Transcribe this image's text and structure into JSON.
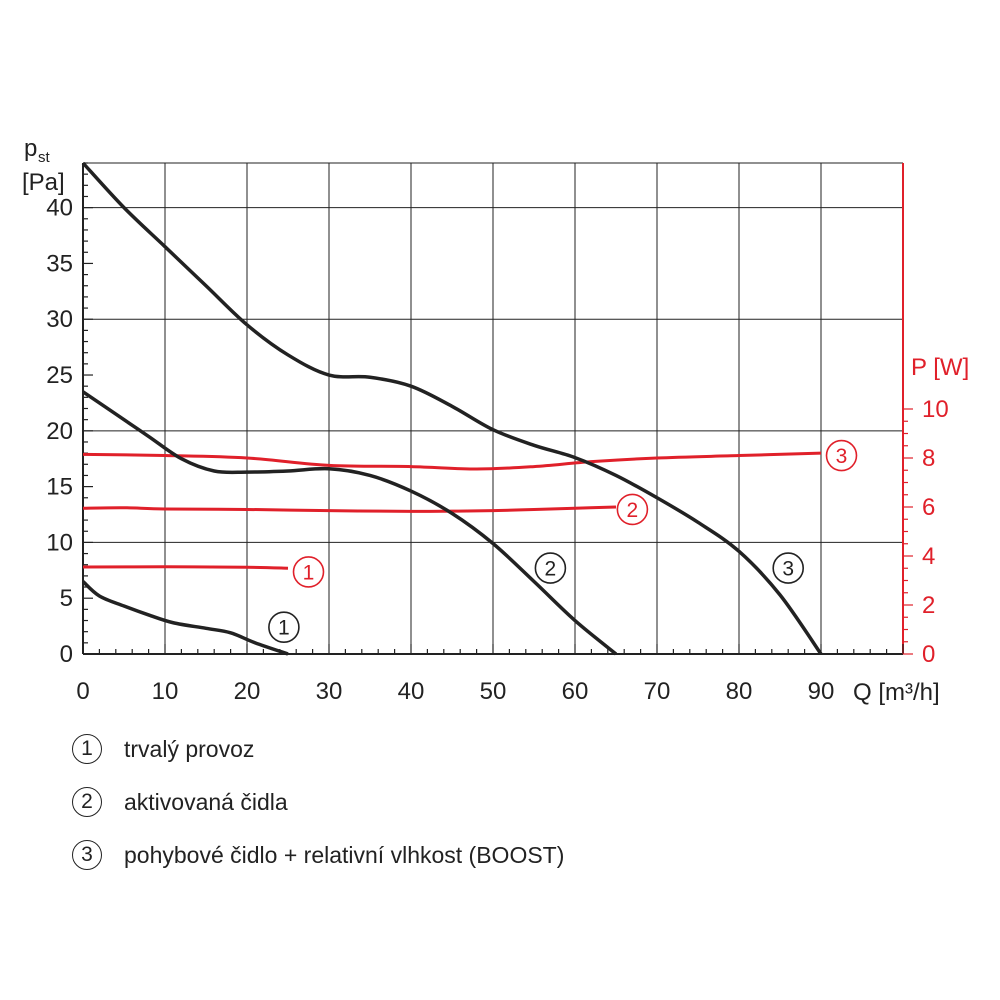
{
  "chart_data": {
    "type": "line",
    "left_axis": {
      "label_main": "p",
      "label_sub": "st",
      "unit": "[Pa]",
      "ylim": [
        0,
        44
      ],
      "ticks": [
        "0",
        "5",
        "10",
        "15",
        "20",
        "25",
        "30",
        "35",
        "40"
      ]
    },
    "right_axis": {
      "label": "P [W]",
      "color": "#e0202a",
      "ylim": [
        0,
        10
      ],
      "ticks": [
        "0",
        "2",
        "4",
        "6",
        "8",
        "10"
      ]
    },
    "x_axis": {
      "label": "Q [m³/h]",
      "xlim": [
        0,
        100
      ],
      "ticks": [
        "0",
        "10",
        "20",
        "30",
        "40",
        "50",
        "60",
        "70",
        "80",
        "90"
      ]
    },
    "grid": true,
    "pressure_series": [
      {
        "marker": "1",
        "axis": "left",
        "color": "#222222",
        "x": [
          0,
          2,
          5,
          8,
          11,
          15,
          18,
          21,
          25
        ],
        "y": [
          6.5,
          5.2,
          4.3,
          3.5,
          2.8,
          2.3,
          1.9,
          1.0,
          0
        ]
      },
      {
        "marker": "2",
        "axis": "left",
        "color": "#222222",
        "x": [
          0,
          4,
          8,
          12,
          16,
          20,
          25,
          30,
          35,
          40,
          45,
          50,
          55,
          60,
          65
        ],
        "y": [
          23.5,
          21.5,
          19.5,
          17.5,
          16.4,
          16.3,
          16.4,
          16.6,
          16.0,
          14.6,
          12.6,
          9.9,
          6.5,
          3.0,
          0
        ]
      },
      {
        "marker": "3",
        "axis": "left",
        "color": "#222222",
        "x": [
          0,
          5,
          10,
          15,
          20,
          25,
          30,
          35,
          40,
          45,
          50,
          55,
          60,
          65,
          70,
          75,
          80,
          85,
          90
        ],
        "y": [
          44,
          40,
          36.5,
          33,
          29.5,
          26.8,
          25.0,
          24.8,
          24.0,
          22.2,
          20.1,
          18.7,
          17.6,
          16.0,
          14.0,
          11.8,
          9.2,
          5.3,
          0
        ]
      }
    ],
    "power_series": [
      {
        "marker": "1",
        "axis": "right",
        "color": "#e0202a",
        "x": [
          0,
          10,
          20,
          25
        ],
        "y": [
          3.55,
          3.56,
          3.54,
          3.5
        ]
      },
      {
        "marker": "2",
        "axis": "right",
        "color": "#e0202a",
        "x": [
          0,
          5,
          10,
          20,
          30,
          40,
          45,
          50,
          55,
          60,
          65
        ],
        "y": [
          5.95,
          5.97,
          5.92,
          5.9,
          5.85,
          5.82,
          5.83,
          5.85,
          5.9,
          5.95,
          6.0
        ]
      },
      {
        "marker": "3",
        "axis": "right",
        "color": "#e0202a",
        "x": [
          0,
          10,
          20,
          30,
          40,
          48,
          55,
          62,
          70,
          80,
          90
        ],
        "y": [
          8.15,
          8.1,
          8.0,
          7.7,
          7.65,
          7.55,
          7.65,
          7.85,
          8.0,
          8.1,
          8.2
        ]
      }
    ],
    "pressure_marker_positions": [
      {
        "marker": "1",
        "x": 24.5,
        "y": 2.4
      },
      {
        "marker": "2",
        "x": 57.0,
        "y": 7.7
      },
      {
        "marker": "3",
        "x": 86.0,
        "y": 7.7
      }
    ],
    "power_marker_positions": [
      {
        "marker": "1",
        "x": 27.5,
        "y": 3.35
      },
      {
        "marker": "2",
        "x": 67.0,
        "y": 5.9
      },
      {
        "marker": "3",
        "x": 92.5,
        "y": 8.1
      }
    ]
  },
  "legend": [
    {
      "marker": "1",
      "label": "trvalý provoz"
    },
    {
      "marker": "2",
      "label": "aktivovaná čidla"
    },
    {
      "marker": "3",
      "label": "pohybové čidlo + relativní vlhkost (BOOST)"
    }
  ]
}
